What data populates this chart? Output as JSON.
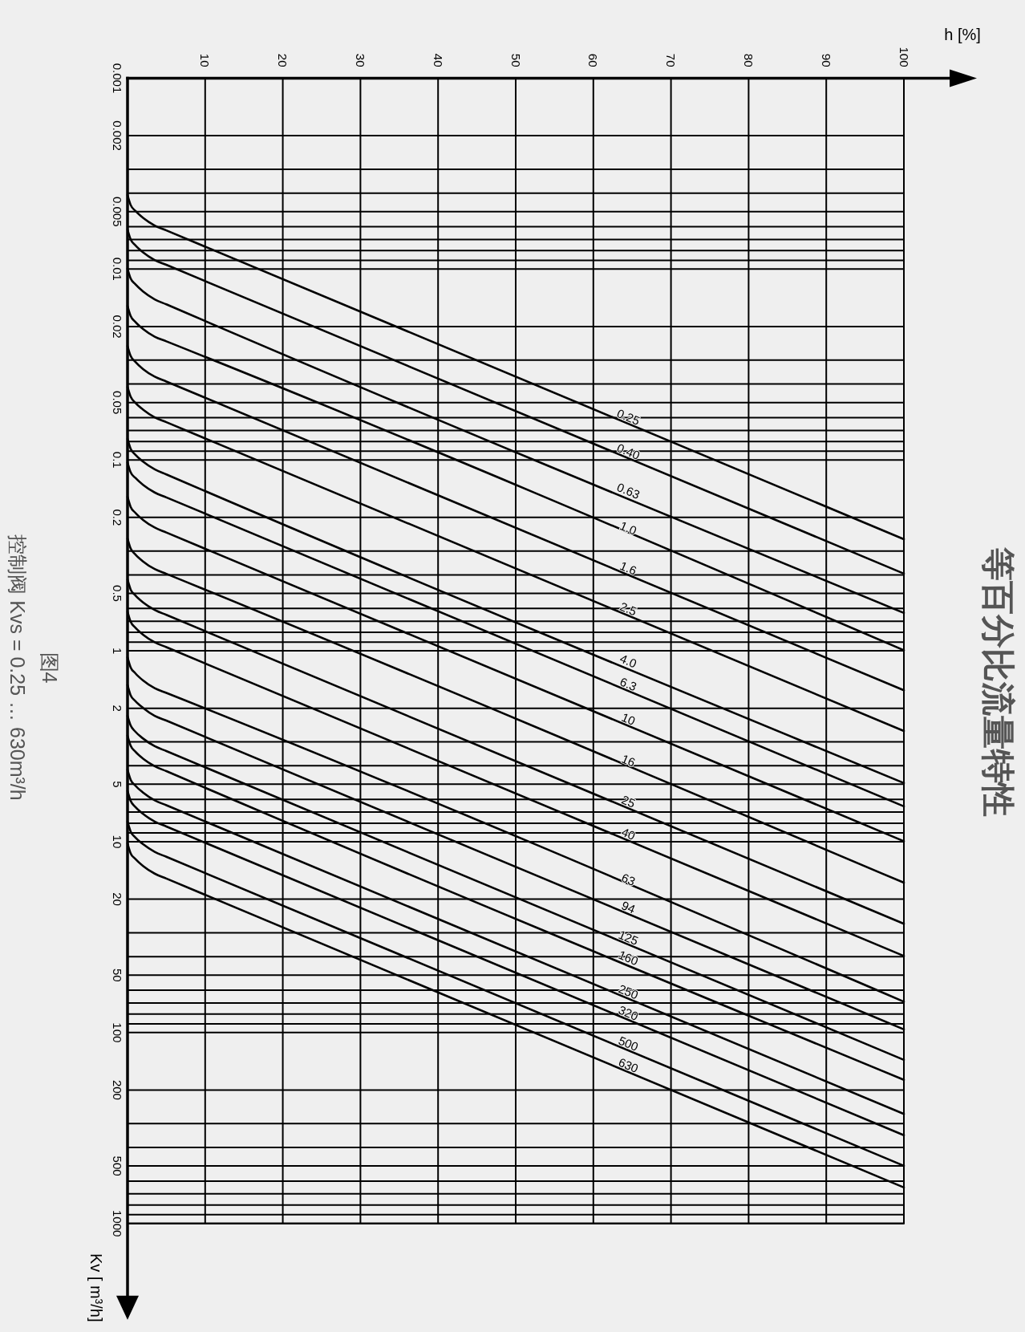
{
  "chart_data": {
    "type": "line",
    "title": "等百分比流量特性",
    "xlabel": "h [%]",
    "ylabel": "Kv [ m³/h]",
    "annotations": [
      "图4",
      "控制阀 Kvs = 0.25 … 630m³/h"
    ],
    "x": [
      0,
      0.4,
      1,
      2,
      3.5,
      5,
      100
    ],
    "xlim": [
      0,
      100
    ],
    "xticks": [
      10,
      20,
      30,
      40,
      50,
      60,
      70,
      80,
      90,
      100
    ],
    "ylim": [
      1000,
      0.001
    ],
    "log": "y",
    "grid": true,
    "yticks": [
      0.001,
      0.002,
      {
        "value": 0.003,
        "label": null
      },
      {
        "value": 0.004,
        "label": null
      },
      0.005,
      {
        "value": 0.006,
        "label": null
      },
      {
        "value": 0.007,
        "label": null
      },
      {
        "value": 0.008,
        "label": null
      },
      {
        "value": 0.009,
        "label": null
      },
      0.01,
      0.02,
      {
        "value": 0.03,
        "label": null
      },
      {
        "value": 0.04,
        "label": null
      },
      0.05,
      {
        "value": 0.06,
        "label": null
      },
      {
        "value": 0.07,
        "label": null
      },
      {
        "value": 0.08,
        "label": null
      },
      {
        "value": 0.09,
        "label": null
      },
      0.1,
      0.2,
      {
        "value": 0.3,
        "label": null
      },
      {
        "value": 0.4,
        "label": null
      },
      0.5,
      {
        "value": 0.6,
        "label": null
      },
      {
        "value": 0.7,
        "label": null
      },
      {
        "value": 0.8,
        "label": null
      },
      {
        "value": 0.9,
        "label": null
      },
      1,
      2,
      {
        "value": 3,
        "label": null
      },
      {
        "value": 4,
        "label": null
      },
      5,
      {
        "value": 6,
        "label": null
      },
      {
        "value": 7,
        "label": null
      },
      {
        "value": 8,
        "label": null
      },
      {
        "value": 9,
        "label": null
      },
      10,
      20,
      {
        "value": 30,
        "label": null
      },
      {
        "value": 40,
        "label": null
      },
      50,
      {
        "value": 60,
        "label": null
      },
      {
        "value": 70,
        "label": null
      },
      {
        "value": 80,
        "label": null
      },
      {
        "value": 90,
        "label": null
      },
      100,
      200,
      {
        "value": 300,
        "label": null
      },
      {
        "value": 400,
        "label": null
      },
      500,
      {
        "value": 600,
        "label": null
      },
      {
        "value": 700,
        "label": null
      },
      {
        "value": 800,
        "label": null
      },
      {
        "value": 900,
        "label": null
      },
      1000
    ],
    "series": [
      {
        "name": "0.25",
        "color": "#000000",
        "values": [
          0.00409,
          0.00461,
          0.00495,
          0.00539,
          0.00591,
          0.00627,
          0.26
        ]
      },
      {
        "name": "0.40",
        "color": "#000000",
        "values": [
          0.0062,
          0.00698,
          0.0075,
          0.00817,
          0.00896,
          0.0095,
          0.394
        ]
      },
      {
        "name": "0.63",
        "color": "#000000",
        "values": [
          0.00995,
          0.0112,
          0.012,
          0.0131,
          0.0144,
          0.0153,
          0.633
        ]
      },
      {
        "name": "1.0",
        "color": "#000000",
        "values": [
          0.0156,
          0.0176,
          0.0189,
          0.0206,
          0.0226,
          0.0239,
          0.993
        ]
      },
      {
        "name": "1.6",
        "color": "#000000",
        "values": [
          0.0253,
          0.0285,
          0.0306,
          0.0334,
          0.0366,
          0.0388,
          1.61
        ]
      },
      {
        "name": "2.5",
        "color": "#000000",
        "values": [
          0.0414,
          0.0466,
          0.0501,
          0.0545,
          0.0598,
          0.0634,
          2.63
        ]
      },
      {
        "name": "4.0",
        "color": "#000000",
        "values": [
          0.0775,
          0.0874,
          0.0938,
          0.102,
          0.112,
          0.119,
          4.93
        ]
      },
      {
        "name": "6.3",
        "color": "#000000",
        "values": [
          0.103,
          0.116,
          0.124,
          0.135,
          0.148,
          0.157,
          6.53
        ]
      },
      {
        "name": "10",
        "color": "#000000",
        "values": [
          0.156,
          0.176,
          0.189,
          0.206,
          0.226,
          0.24,
          9.94
        ]
      },
      {
        "name": "16",
        "color": "#000000",
        "values": [
          0.258,
          0.291,
          0.312,
          0.34,
          0.373,
          0.395,
          16.4
        ]
      },
      {
        "name": "25",
        "color": "#000000",
        "values": [
          0.423,
          0.477,
          0.512,
          0.558,
          0.611,
          0.648,
          26.9
        ]
      },
      {
        "name": "40",
        "color": "#000000",
        "values": [
          0.624,
          0.704,
          0.756,
          0.823,
          0.902,
          0.957,
          39.7
        ]
      },
      {
        "name": "63",
        "color": "#000000",
        "values": [
          1.08,
          1.22,
          1.31,
          1.43,
          1.57,
          1.66,
          68.9
        ]
      },
      {
        "name": "94",
        "color": "#000000",
        "values": [
          1.51,
          1.71,
          1.83,
          1.99,
          2.19,
          2.32,
          96.2
        ]
      },
      {
        "name": "125",
        "color": "#000000",
        "values": [
          2.19,
          2.46,
          2.65,
          2.88,
          3.16,
          3.35,
          139
        ]
      },
      {
        "name": "160",
        "color": "#000000",
        "values": [
          2.78,
          3.14,
          3.37,
          3.67,
          4.02,
          4.27,
          177
        ]
      },
      {
        "name": "250",
        "color": "#000000",
        "values": [
          4.2,
          4.73,
          5.08,
          5.53,
          6.07,
          6.44,
          267
        ]
      },
      {
        "name": "320",
        "color": "#000000",
        "values": [
          5.42,
          6.11,
          6.57,
          7.15,
          7.84,
          8.32,
          345
        ]
      },
      {
        "name": "500",
        "color": "#000000",
        "values": [
          7.85,
          8.84,
          9.5,
          10.3,
          11.3,
          12,
          499
        ]
      },
      {
        "name": "630",
        "color": "#000000",
        "values": [
          10.2,
          11.5,
          12.3,
          13.4,
          14.7,
          15.6,
          648
        ]
      }
    ]
  }
}
